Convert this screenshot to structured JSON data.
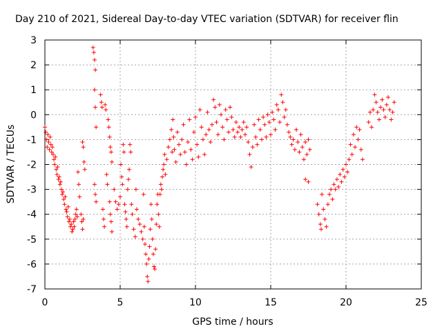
{
  "chart_data": {
    "type": "scatter",
    "title": "Day 210 of 2021, Sidereal Day-to-day VTEC variation (SDTVAR) for receiver flin",
    "xlabel": "GPS time / hours",
    "ylabel": "SDTVAR / TECUs",
    "xlim": [
      0,
      25
    ],
    "ylim": [
      -7,
      3
    ],
    "xticks": [
      "0",
      "5",
      "10",
      "15",
      "20",
      "25"
    ],
    "yticks": [
      "3",
      "2",
      "1",
      "0",
      "-1",
      "-2",
      "-3",
      "-4",
      "-5",
      "-6",
      "-7"
    ],
    "grid": true,
    "marker": "+",
    "series_color": "#ff0000",
    "series": [
      {
        "name": "SDTVAR",
        "points": [
          [
            0.0,
            -0.5
          ],
          [
            0.05,
            -0.7
          ],
          [
            0.1,
            -1.0
          ],
          [
            0.15,
            -1.3
          ],
          [
            0.2,
            -0.8
          ],
          [
            0.25,
            -1.1
          ],
          [
            0.3,
            -1.4
          ],
          [
            0.35,
            -0.9
          ],
          [
            0.4,
            -1.2
          ],
          [
            0.45,
            -1.5
          ],
          [
            0.5,
            -1.3
          ],
          [
            0.55,
            -1.6
          ],
          [
            0.6,
            -1.8
          ],
          [
            0.65,
            -2.0
          ],
          [
            0.7,
            -1.7
          ],
          [
            0.75,
            -2.2
          ],
          [
            0.8,
            -2.4
          ],
          [
            0.85,
            -2.1
          ],
          [
            0.9,
            -2.6
          ],
          [
            0.95,
            -2.5
          ],
          [
            1.0,
            -2.8
          ],
          [
            1.05,
            -2.7
          ],
          [
            1.1,
            -3.0
          ],
          [
            1.15,
            -3.2
          ],
          [
            1.2,
            -3.1
          ],
          [
            1.25,
            -3.4
          ],
          [
            1.3,
            -3.6
          ],
          [
            1.35,
            -3.3
          ],
          [
            1.4,
            -3.8
          ],
          [
            1.45,
            -3.9
          ],
          [
            1.5,
            -4.1
          ],
          [
            1.55,
            -3.7
          ],
          [
            1.6,
            -4.3
          ],
          [
            1.65,
            -4.2
          ],
          [
            1.7,
            -4.5
          ],
          [
            1.75,
            -4.4
          ],
          [
            1.8,
            -4.7
          ],
          [
            1.85,
            -4.6
          ],
          [
            1.9,
            -4.3
          ],
          [
            1.95,
            -4.5
          ],
          [
            2.0,
            -4.2
          ],
          [
            2.05,
            -4.0
          ],
          [
            2.1,
            -3.8
          ],
          [
            2.15,
            -4.1
          ],
          [
            2.2,
            -2.3
          ],
          [
            2.25,
            -2.8
          ],
          [
            2.3,
            -3.3
          ],
          [
            2.4,
            -4.0
          ],
          [
            2.45,
            -4.3
          ],
          [
            2.5,
            -4.6
          ],
          [
            2.55,
            -4.2
          ],
          [
            2.5,
            -1.1
          ],
          [
            2.55,
            -1.3
          ],
          [
            2.6,
            -1.9
          ],
          [
            2.65,
            -2.2
          ],
          [
            3.2,
            2.7
          ],
          [
            3.25,
            2.5
          ],
          [
            3.3,
            2.2
          ],
          [
            3.35,
            1.8
          ],
          [
            3.3,
            1.0
          ],
          [
            3.35,
            0.3
          ],
          [
            3.4,
            -0.5
          ],
          [
            3.3,
            -2.8
          ],
          [
            3.35,
            -3.2
          ],
          [
            3.4,
            -3.5
          ],
          [
            3.7,
            0.8
          ],
          [
            3.75,
            0.5
          ],
          [
            3.8,
            0.3
          ],
          [
            3.85,
            -3.8
          ],
          [
            3.9,
            -4.2
          ],
          [
            3.95,
            -4.5
          ],
          [
            4.0,
            0.4
          ],
          [
            4.05,
            0.2
          ],
          [
            4.1,
            -2.4
          ],
          [
            4.15,
            -2.8
          ],
          [
            4.2,
            -0.2
          ],
          [
            4.25,
            -0.5
          ],
          [
            4.3,
            -0.9
          ],
          [
            4.35,
            -1.3
          ],
          [
            4.4,
            -1.5
          ],
          [
            4.45,
            -1.9
          ],
          [
            4.3,
            -3.5
          ],
          [
            4.35,
            -4.0
          ],
          [
            4.4,
            -4.3
          ],
          [
            4.45,
            -4.7
          ],
          [
            4.6,
            -3.0
          ],
          [
            4.7,
            -3.5
          ],
          [
            4.8,
            -3.8
          ],
          [
            4.9,
            -3.6
          ],
          [
            5.0,
            -3.3
          ],
          [
            5.05,
            -2.0
          ],
          [
            5.1,
            -2.5
          ],
          [
            5.15,
            -2.8
          ],
          [
            5.2,
            -1.2
          ],
          [
            5.25,
            -1.5
          ],
          [
            5.3,
            -3.6
          ],
          [
            5.35,
            -3.9
          ],
          [
            5.4,
            -4.2
          ],
          [
            5.45,
            -4.5
          ],
          [
            5.5,
            -3.0
          ],
          [
            5.55,
            -2.6
          ],
          [
            5.6,
            -2.2
          ],
          [
            5.65,
            -1.2
          ],
          [
            5.7,
            -1.5
          ],
          [
            5.75,
            -3.6
          ],
          [
            5.8,
            -4.0
          ],
          [
            5.9,
            -4.6
          ],
          [
            6.0,
            -4.9
          ],
          [
            6.05,
            -3.0
          ],
          [
            6.1,
            -3.8
          ],
          [
            6.2,
            -4.2
          ],
          [
            6.3,
            -4.4
          ],
          [
            6.4,
            -4.7
          ],
          [
            6.5,
            -5.0
          ],
          [
            6.55,
            -3.2
          ],
          [
            6.6,
            -4.5
          ],
          [
            6.65,
            -5.2
          ],
          [
            6.7,
            -5.6
          ],
          [
            6.75,
            -6.0
          ],
          [
            6.8,
            -6.5
          ],
          [
            6.85,
            -6.7
          ],
          [
            6.9,
            -5.8
          ],
          [
            6.95,
            -5.3
          ],
          [
            7.0,
            -4.6
          ],
          [
            7.05,
            -3.6
          ],
          [
            7.1,
            -4.2
          ],
          [
            7.15,
            -5.0
          ],
          [
            7.2,
            -5.6
          ],
          [
            7.25,
            -6.1
          ],
          [
            7.3,
            -6.2
          ],
          [
            7.35,
            -5.4
          ],
          [
            7.4,
            -4.4
          ],
          [
            7.45,
            -3.6
          ],
          [
            7.5,
            -3.2
          ],
          [
            7.55,
            -4.0
          ],
          [
            7.6,
            -4.5
          ],
          [
            7.65,
            -3.2
          ],
          [
            7.7,
            -2.8
          ],
          [
            7.75,
            -3.0
          ],
          [
            7.8,
            -2.5
          ],
          [
            7.85,
            -2.2
          ],
          [
            7.9,
            -2.0
          ],
          [
            7.95,
            -1.6
          ],
          [
            8.0,
            -2.4
          ],
          [
            8.1,
            -1.8
          ],
          [
            8.2,
            -1.3
          ],
          [
            8.3,
            -1.0
          ],
          [
            8.4,
            -0.6
          ],
          [
            8.45,
            -1.5
          ],
          [
            8.5,
            -0.2
          ],
          [
            8.55,
            -0.9
          ],
          [
            8.6,
            -1.4
          ],
          [
            8.7,
            -1.9
          ],
          [
            8.8,
            -0.7
          ],
          [
            8.9,
            -1.2
          ],
          [
            9.0,
            -1.6
          ],
          [
            9.1,
            -1.0
          ],
          [
            9.2,
            -0.4
          ],
          [
            9.3,
            -1.5
          ],
          [
            9.4,
            -2.0
          ],
          [
            9.5,
            -1.1
          ],
          [
            9.6,
            -0.2
          ],
          [
            9.7,
            -1.4
          ],
          [
            9.8,
            -1.8
          ],
          [
            9.9,
            -0.7
          ],
          [
            10.0,
            -0.1
          ],
          [
            10.1,
            -1.2
          ],
          [
            10.2,
            -1.7
          ],
          [
            10.3,
            0.2
          ],
          [
            10.4,
            -0.5
          ],
          [
            10.5,
            -1.0
          ],
          [
            10.6,
            -1.6
          ],
          [
            10.7,
            -0.8
          ],
          [
            10.8,
            0.1
          ],
          [
            10.9,
            -0.6
          ],
          [
            11.0,
            -1.1
          ],
          [
            11.1,
            -0.4
          ],
          [
            11.2,
            0.6
          ],
          [
            11.3,
            0.3
          ],
          [
            11.4,
            -0.3
          ],
          [
            11.5,
            -0.8
          ],
          [
            11.6,
            0.4
          ],
          [
            11.7,
            0.0
          ],
          [
            11.8,
            -0.5
          ],
          [
            11.9,
            -1.0
          ],
          [
            12.0,
            0.2
          ],
          [
            12.1,
            -0.2
          ],
          [
            12.2,
            -0.7
          ],
          [
            12.3,
            0.3
          ],
          [
            12.4,
            -0.1
          ],
          [
            12.5,
            -0.6
          ],
          [
            12.6,
            -0.9
          ],
          [
            12.7,
            -0.3
          ],
          [
            12.8,
            -0.7
          ],
          [
            12.9,
            -0.5
          ],
          [
            13.0,
            -0.9
          ],
          [
            13.1,
            -0.6
          ],
          [
            13.2,
            -0.3
          ],
          [
            13.3,
            -0.8
          ],
          [
            13.4,
            -0.5
          ],
          [
            13.5,
            -1.1
          ],
          [
            13.6,
            -1.6
          ],
          [
            13.7,
            -2.1
          ],
          [
            13.8,
            -1.3
          ],
          [
            13.9,
            -0.4
          ],
          [
            14.0,
            -0.9
          ],
          [
            14.1,
            -1.2
          ],
          [
            14.2,
            -0.2
          ],
          [
            14.3,
            -0.6
          ],
          [
            14.4,
            -1.0
          ],
          [
            14.5,
            -0.1
          ],
          [
            14.6,
            -0.4
          ],
          [
            14.7,
            -0.9
          ],
          [
            14.8,
            0.0
          ],
          [
            14.9,
            -0.3
          ],
          [
            15.0,
            -0.8
          ],
          [
            15.1,
            0.1
          ],
          [
            15.2,
            -0.2
          ],
          [
            15.3,
            -0.6
          ],
          [
            15.4,
            0.4
          ],
          [
            15.5,
            0.2
          ],
          [
            15.6,
            -0.3
          ],
          [
            15.7,
            0.8
          ],
          [
            15.8,
            0.5
          ],
          [
            15.9,
            -0.1
          ],
          [
            16.0,
            0.2
          ],
          [
            16.1,
            -0.4
          ],
          [
            16.2,
            -0.7
          ],
          [
            16.3,
            -0.9
          ],
          [
            16.4,
            -1.2
          ],
          [
            16.5,
            -1.0
          ],
          [
            16.6,
            -1.4
          ],
          [
            16.7,
            -0.6
          ],
          [
            16.8,
            -1.1
          ],
          [
            16.9,
            -1.5
          ],
          [
            17.0,
            -0.8
          ],
          [
            17.1,
            -1.3
          ],
          [
            17.2,
            -1.8
          ],
          [
            17.3,
            -1.1
          ],
          [
            17.4,
            -1.6
          ],
          [
            17.5,
            -1.0
          ],
          [
            17.6,
            -1.4
          ],
          [
            17.3,
            -2.6
          ],
          [
            17.5,
            -2.7
          ],
          [
            18.1,
            -3.6
          ],
          [
            18.2,
            -4.0
          ],
          [
            18.3,
            -4.4
          ],
          [
            18.35,
            -4.6
          ],
          [
            18.4,
            -3.2
          ],
          [
            18.5,
            -3.8
          ],
          [
            18.6,
            -4.2
          ],
          [
            18.7,
            -4.5
          ],
          [
            18.8,
            -3.6
          ],
          [
            18.9,
            -3.2
          ],
          [
            19.0,
            -3.0
          ],
          [
            19.1,
            -3.4
          ],
          [
            19.2,
            -2.8
          ],
          [
            19.3,
            -3.0
          ],
          [
            19.4,
            -2.6
          ],
          [
            19.5,
            -2.9
          ],
          [
            19.6,
            -2.4
          ],
          [
            19.7,
            -2.7
          ],
          [
            19.8,
            -2.2
          ],
          [
            19.9,
            -2.5
          ],
          [
            20.0,
            -2.0
          ],
          [
            20.1,
            -2.3
          ],
          [
            20.2,
            -1.8
          ],
          [
            20.3,
            -1.2
          ],
          [
            20.4,
            -1.6
          ],
          [
            20.5,
            -0.8
          ],
          [
            20.6,
            -1.3
          ],
          [
            20.7,
            -0.5
          ],
          [
            20.8,
            -1.0
          ],
          [
            20.9,
            -0.6
          ],
          [
            21.0,
            -1.4
          ],
          [
            21.1,
            -1.8
          ],
          [
            21.5,
            -0.3
          ],
          [
            21.6,
            0.1
          ],
          [
            21.7,
            -0.5
          ],
          [
            21.8,
            0.2
          ],
          [
            21.9,
            0.8
          ],
          [
            22.0,
            0.5
          ],
          [
            22.1,
            0.1
          ],
          [
            22.2,
            -0.2
          ],
          [
            22.3,
            0.3
          ],
          [
            22.4,
            0.6
          ],
          [
            22.5,
            0.2
          ],
          [
            22.6,
            -0.1
          ],
          [
            22.7,
            0.4
          ],
          [
            22.8,
            0.7
          ],
          [
            22.9,
            0.2
          ],
          [
            23.0,
            -0.2
          ],
          [
            23.1,
            0.1
          ],
          [
            23.2,
            0.5
          ]
        ]
      }
    ]
  }
}
